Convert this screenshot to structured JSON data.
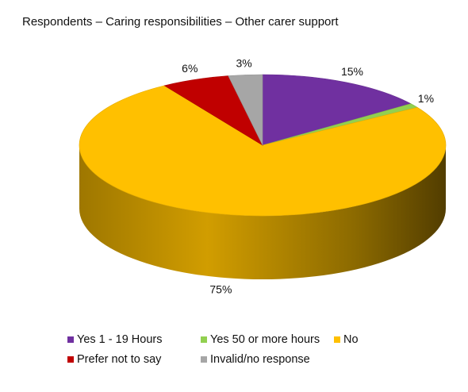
{
  "chart_data": {
    "type": "pie",
    "title": "Respondents – Caring responsibilities – Other carer support",
    "categories": [
      "Yes 1 - 19 Hours",
      "Yes 50 or more hours",
      "No",
      "Prefer not to say",
      "Invalid/no response"
    ],
    "values": [
      15,
      1,
      75,
      6,
      3
    ],
    "data_labels": [
      "15%",
      "1%",
      "75%",
      "6%",
      "3%"
    ],
    "unit": "%",
    "colors": [
      "#7030a0",
      "#92d050",
      "#ffc000",
      "#c00000",
      "#a6a6a6"
    ],
    "legend_position": "bottom",
    "style": "3d-pie"
  }
}
